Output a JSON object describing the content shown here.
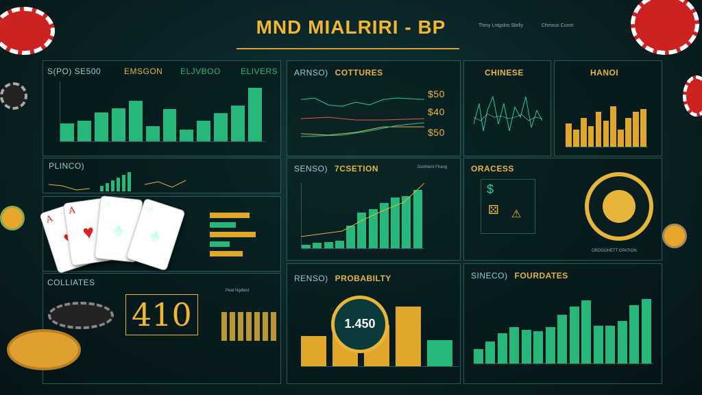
{
  "title": "MND MIALRIRI - BP",
  "top_right": {
    "line1": "Thmy Lntgslos Sbrlly",
    "line2": "Chmsus Cunnt"
  },
  "panels": {
    "tl": {
      "h1": "S(PO) SE500",
      "h2": "EMSGON",
      "h3": "ELJVBOO",
      "h4": "ELIVERS"
    },
    "cottures": {
      "a": "ARNSO)",
      "b": "COTTURES",
      "v1": "$50",
      "v2": "$40",
      "v3": "$50"
    },
    "chinese": {
      "b": "CHINESE"
    },
    "hanoi": {
      "b": "HANOI"
    },
    "plinco": {
      "a": "PLINCO)"
    },
    "section": {
      "a": "SENSO)",
      "b": "7CSETION",
      "legend": "Dunhtent Flrang"
    },
    "oraces": {
      "b": "ORACESS",
      "sub": "ORDGOHETT CPATION"
    },
    "colliates": {
      "b": "COLLIATES",
      "big": "410",
      "sub": "Peat Ngdlest"
    },
    "probability": {
      "a": "RENSO)",
      "b": "PROBABILTY",
      "coin": "1.450"
    },
    "fourdates": {
      "a": "SINECO)",
      "b": "FOURDATES"
    }
  },
  "chart_data": [
    {
      "type": "bar",
      "name": "tl",
      "values": [
        30,
        35,
        48,
        55,
        68,
        25,
        54,
        20,
        35,
        47,
        60,
        90
      ]
    },
    {
      "type": "bar",
      "name": "section",
      "values": [
        5,
        8,
        10,
        12,
        35,
        55,
        60,
        70,
        78,
        80,
        90
      ]
    },
    {
      "type": "bar",
      "name": "fourdates",
      "values": [
        18,
        28,
        38,
        46,
        43,
        41,
        46,
        62,
        72,
        80,
        48,
        48,
        54,
        74,
        82
      ]
    },
    {
      "type": "bar",
      "name": "hanoi",
      "values": [
        40,
        30,
        50,
        35,
        60,
        45,
        70,
        30,
        50,
        60,
        65
      ]
    },
    {
      "type": "bar",
      "name": "prob",
      "values": [
        40,
        70,
        55,
        80,
        35
      ]
    }
  ],
  "colors": {
    "accent": "#f1b632",
    "green": "#27b77b",
    "panel_border": "#2c5a55"
  }
}
